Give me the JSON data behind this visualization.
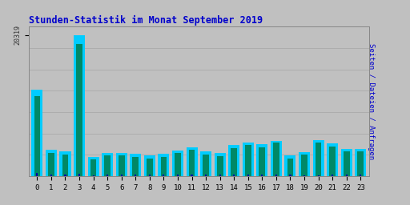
{
  "title": "Stunden-Statistik im Monat September 2019",
  "title_color": "#0000cc",
  "ytick_label": "20319",
  "ytick_value": 20319,
  "background_color": "#c0c0c0",
  "grid_color": "#aaaaaa",
  "hours": [
    0,
    1,
    2,
    3,
    4,
    5,
    6,
    7,
    8,
    9,
    10,
    11,
    12,
    13,
    14,
    15,
    16,
    17,
    18,
    19,
    20,
    21,
    22,
    23
  ],
  "seiten": [
    12500,
    3800,
    3600,
    20319,
    2800,
    3400,
    3400,
    3200,
    3000,
    3200,
    3700,
    4200,
    3600,
    3300,
    4500,
    4800,
    4600,
    5100,
    3000,
    3500,
    5200,
    4700,
    3900,
    3900
  ],
  "dateien": [
    11500,
    3400,
    3100,
    19000,
    2400,
    3000,
    3000,
    2800,
    2500,
    2800,
    3300,
    3800,
    3100,
    2900,
    4100,
    4500,
    4200,
    4800,
    2600,
    3100,
    4900,
    4300,
    3600,
    3600
  ],
  "anfragen": [
    500,
    200,
    200,
    350,
    150,
    200,
    200,
    200,
    200,
    200,
    200,
    200,
    200,
    200,
    200,
    200,
    200,
    200,
    200,
    150,
    150,
    200,
    200,
    200
  ],
  "color_seiten": "#00ccff",
  "color_dateien": "#008866",
  "color_anfragen": "#0000aa",
  "bar_width": 0.8,
  "ylim_max": 21500,
  "right_label_seiten": "Seiten",
  "right_label_sep": " / ",
  "right_label_dateien": "Dateien",
  "right_label_anfragen": "Anfragen",
  "right_color_seiten": "#0000cc",
  "right_color_dateien": "#008866",
  "right_color_anfragen": "#00aaaa",
  "figsize": [
    5.12,
    2.56
  ],
  "dpi": 100
}
